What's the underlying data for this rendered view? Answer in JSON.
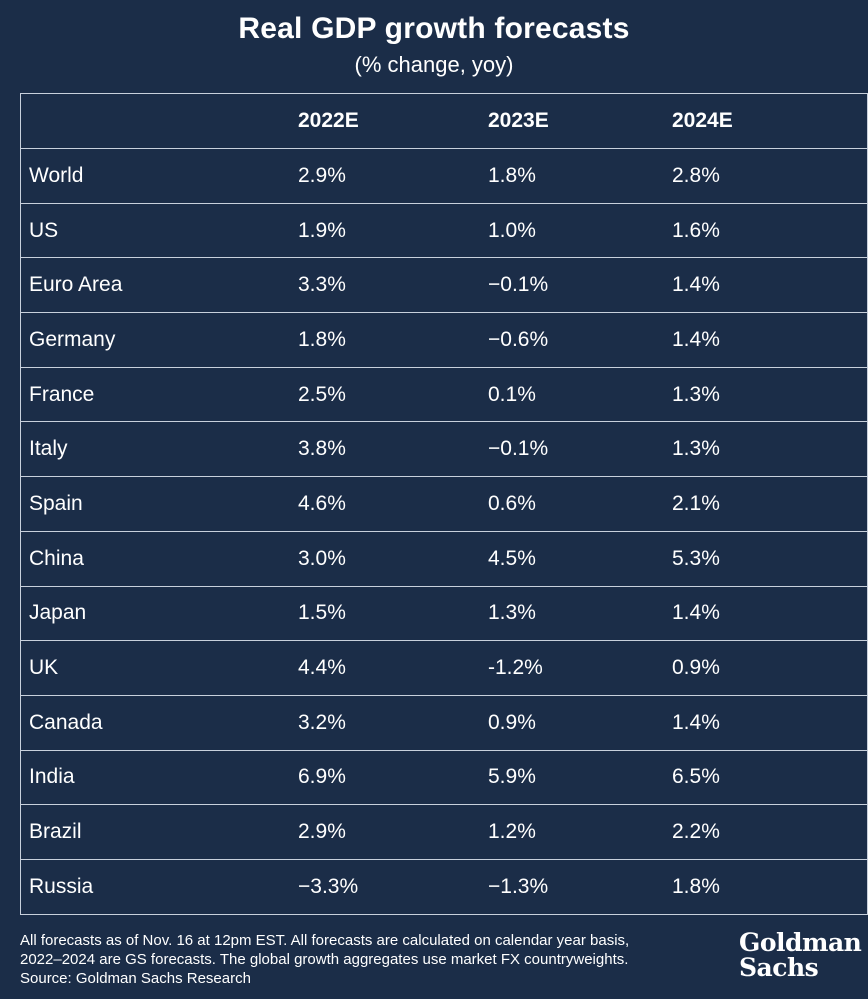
{
  "title": "Real GDP growth forecasts",
  "subtitle": "(% change, yoy)",
  "chart_data": {
    "type": "table",
    "title": "Real GDP growth forecasts",
    "subtitle": "(% change, yoy)",
    "columns": [
      "",
      "2022E",
      "2023E",
      "2024E"
    ],
    "rows": [
      {
        "country": "World",
        "values": [
          "2.9%",
          "1.8%",
          "2.8%"
        ]
      },
      {
        "country": "US",
        "values": [
          "1.9%",
          "1.0%",
          "1.6%"
        ]
      },
      {
        "country": "Euro Area",
        "values": [
          "3.3%",
          "−0.1%",
          "1.4%"
        ]
      },
      {
        "country": "Germany",
        "values": [
          "1.8%",
          "−0.6%",
          "1.4%"
        ]
      },
      {
        "country": "France",
        "values": [
          "2.5%",
          "0.1%",
          "1.3%"
        ]
      },
      {
        "country": "Italy",
        "values": [
          "3.8%",
          "−0.1%",
          "1.3%"
        ]
      },
      {
        "country": "Spain",
        "values": [
          "4.6%",
          "0.6%",
          "2.1%"
        ]
      },
      {
        "country": "China",
        "values": [
          "3.0%",
          "4.5%",
          "5.3%"
        ]
      },
      {
        "country": "Japan",
        "values": [
          "1.5%",
          "1.3%",
          "1.4%"
        ]
      },
      {
        "country": "UK",
        "values": [
          "4.4%",
          "-1.2%",
          "0.9%"
        ]
      },
      {
        "country": "Canada",
        "values": [
          "3.2%",
          "0.9%",
          "1.4%"
        ]
      },
      {
        "country": "India",
        "values": [
          "6.9%",
          "5.9%",
          "6.5%"
        ]
      },
      {
        "country": "Brazil",
        "values": [
          "2.9%",
          "1.2%",
          "2.2%"
        ]
      },
      {
        "country": "Russia",
        "values": [
          "−3.3%",
          "−1.3%",
          "1.8%"
        ]
      }
    ]
  },
  "footnote": {
    "line1": "All forecasts as of Nov. 16 at 12pm EST. All forecasts are calculated on calendar year basis,",
    "line2": "2022–2024 are GS forecasts. The global growth aggregates use market FX countryweights.",
    "line3": "Source: Goldman Sachs Research"
  },
  "logo": {
    "line1": "Goldman",
    "line2": "Sachs"
  },
  "colors": {
    "background": "#1b2d48",
    "text": "#ffffff",
    "grid": "#c8d0dc"
  }
}
